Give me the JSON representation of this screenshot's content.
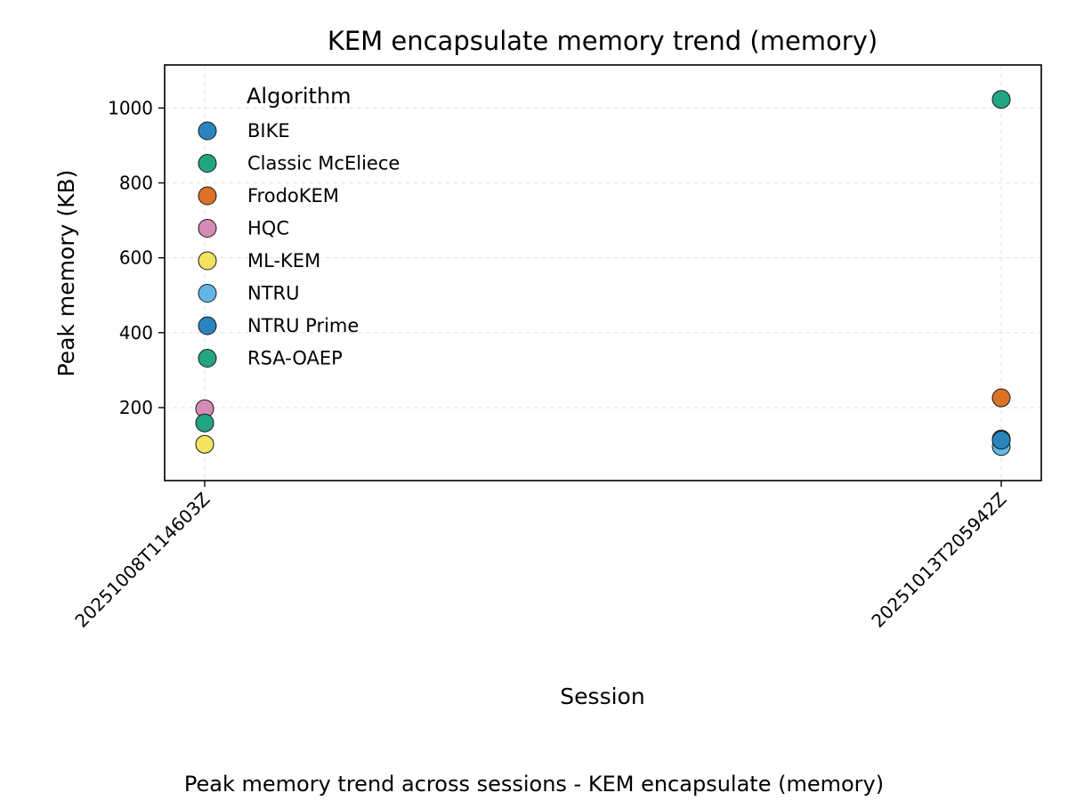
{
  "chart_data": {
    "type": "scatter",
    "title": "KEM encapsulate memory trend (memory)",
    "xlabel": "Session",
    "ylabel": "Peak memory (KB)",
    "caption": "Peak memory trend across sessions - KEM encapsulate (memory)",
    "categories": [
      "20251008T114603Z",
      "20251013T205942Z"
    ],
    "y_ticks": [
      200,
      400,
      600,
      800,
      1000
    ],
    "ylim": [
      5,
      1115
    ],
    "grid": true,
    "legend_title": "Algorithm",
    "legend_placement": "top-left",
    "series": [
      {
        "name": "BIKE",
        "color": "#2a85bf",
        "points": [
          {
            "x": "20251013T205942Z",
            "y": 116
          }
        ]
      },
      {
        "name": "Classic McEliece",
        "color": "#22a582",
        "points": [
          {
            "x": "20251013T205942Z",
            "y": 1023
          }
        ]
      },
      {
        "name": "FrodoKEM",
        "color": "#dd7125",
        "points": [
          {
            "x": "20251013T205942Z",
            "y": 226
          }
        ]
      },
      {
        "name": "HQC",
        "color": "#d68bb5",
        "points": [
          {
            "x": "20251008T114603Z",
            "y": 197
          }
        ]
      },
      {
        "name": "ML-KEM",
        "color": "#f1e361",
        "points": [
          {
            "x": "20251008T114603Z",
            "y": 102
          }
        ]
      },
      {
        "name": "NTRU",
        "color": "#63b7e8",
        "points": [
          {
            "x": "20251013T205942Z",
            "y": 96
          }
        ]
      },
      {
        "name": "NTRU Prime",
        "color": "#2a85bf",
        "points": [
          {
            "x": "20251013T205942Z",
            "y": 113
          }
        ]
      },
      {
        "name": "RSA-OAEP",
        "color": "#22a582",
        "points": [
          {
            "x": "20251008T114603Z",
            "y": 159
          }
        ]
      }
    ]
  }
}
